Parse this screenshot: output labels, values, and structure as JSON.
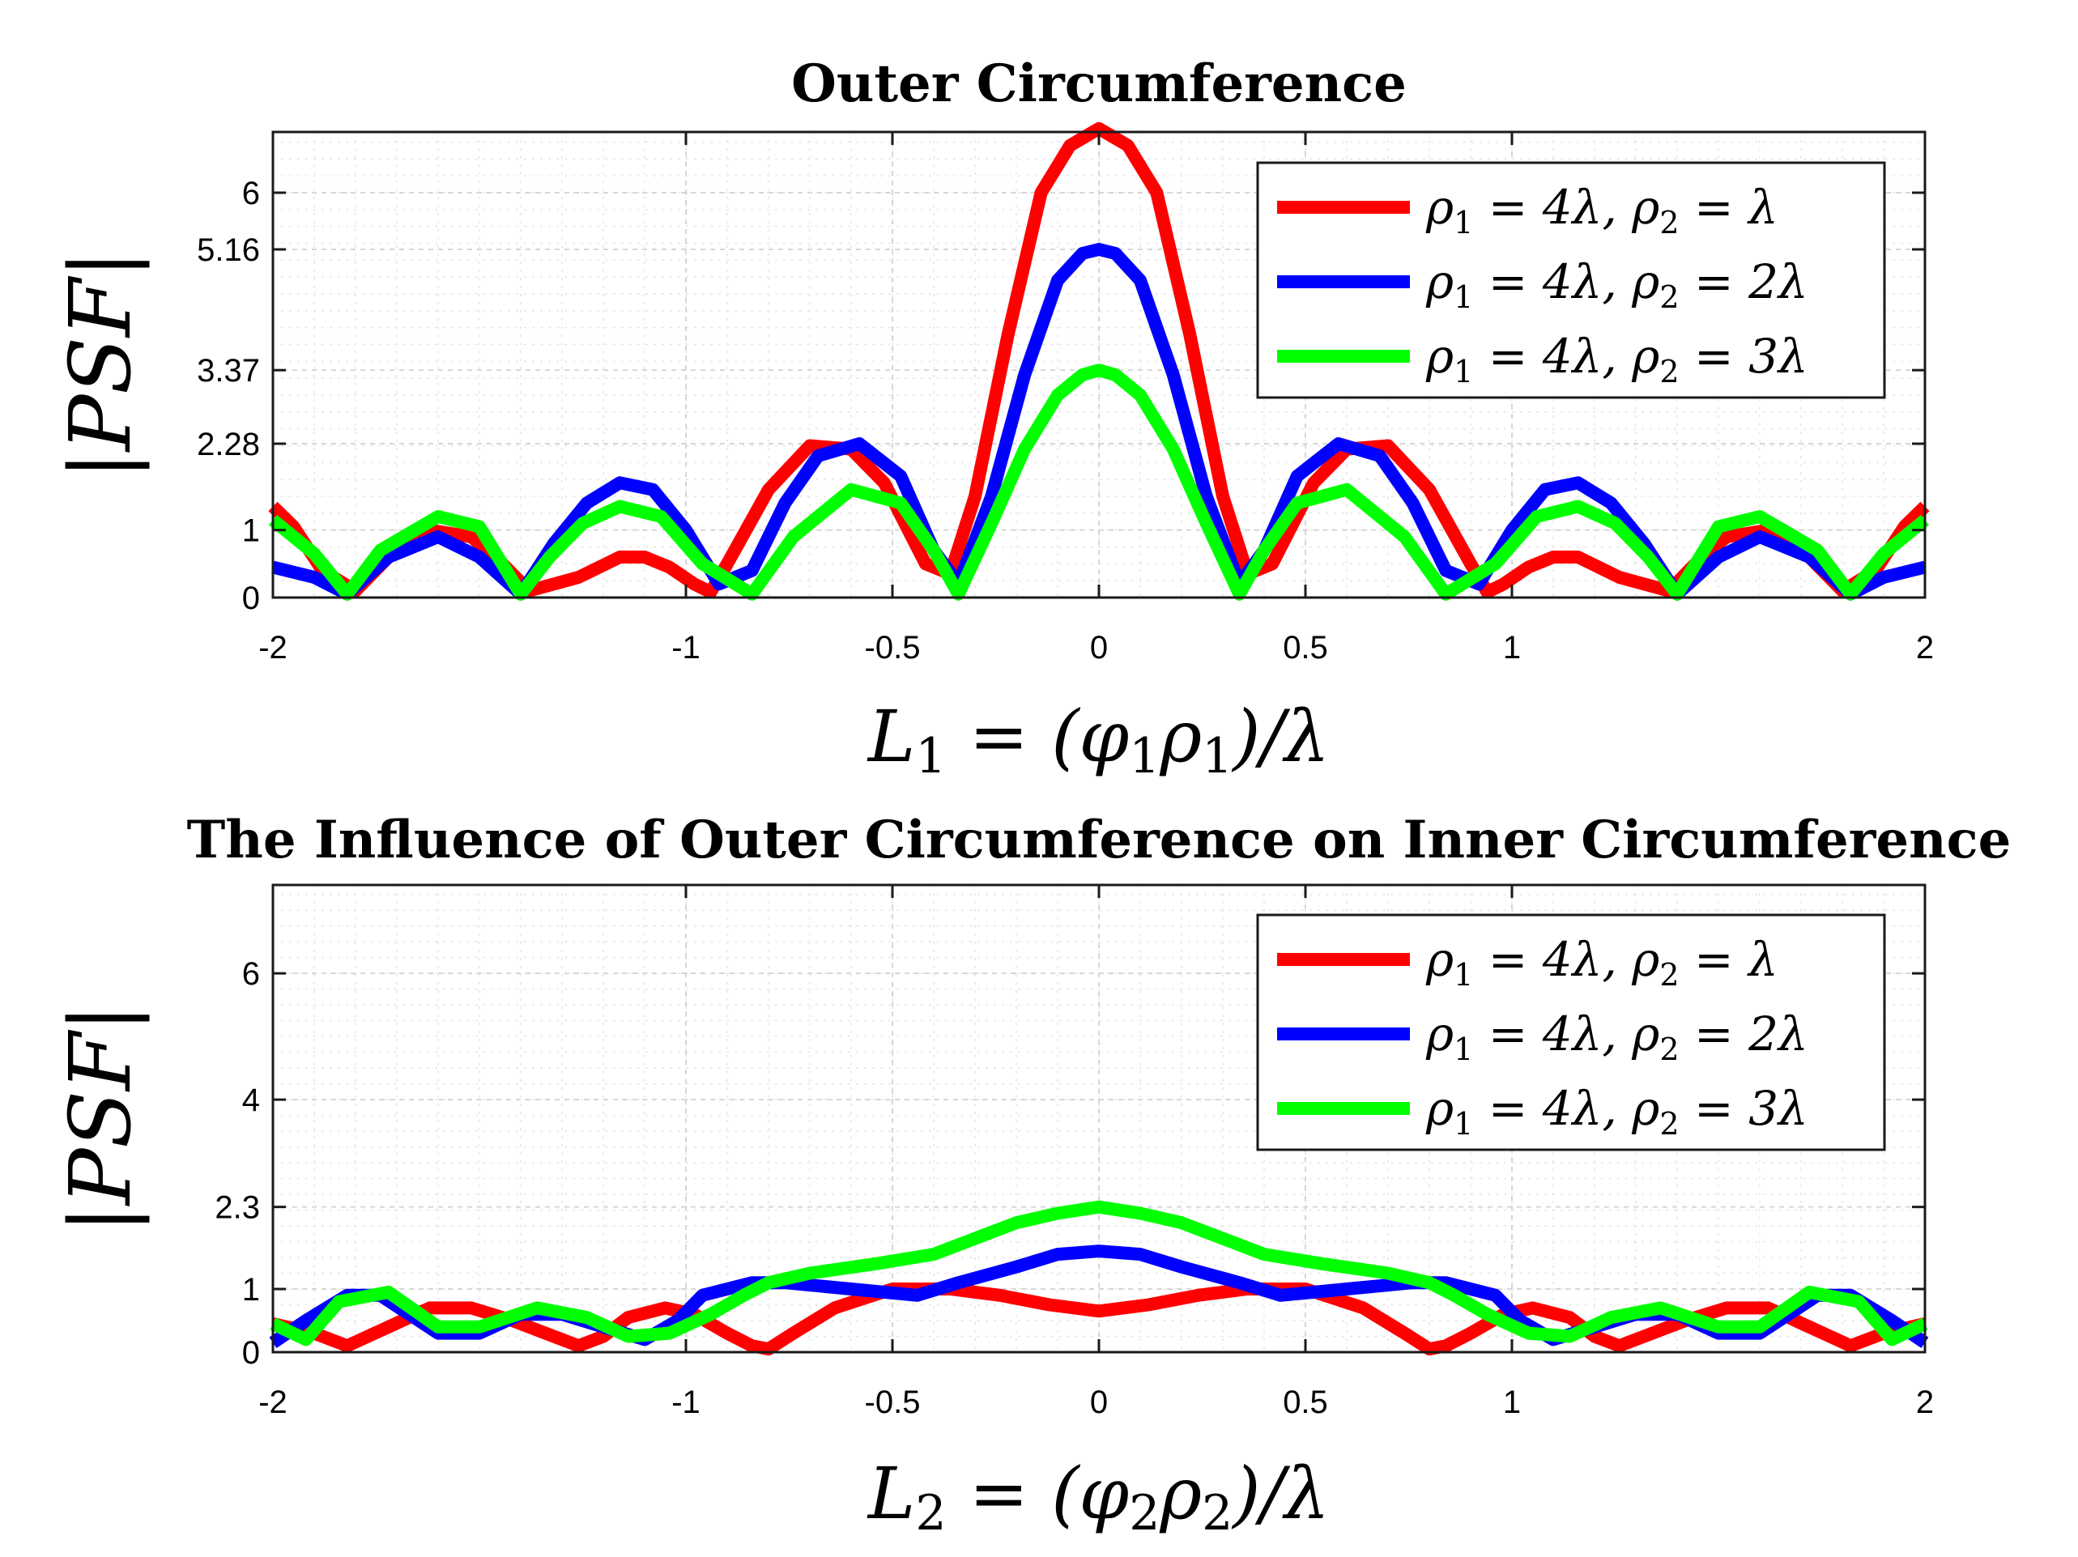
{
  "chart_data": [
    {
      "type": "line",
      "title": "Outer Circumference",
      "ylabel": "|PSF|",
      "xlabel": {
        "main": "L",
        "sub": "1",
        "rest": " = (φ",
        "sub2": "1",
        "mid": "ρ",
        "sub3": "1",
        "end": ")/λ"
      },
      "xlim": [
        -2,
        2
      ],
      "ylim": [
        0,
        6.9
      ],
      "xticks": [
        -2,
        -1,
        -0.5,
        0,
        0.5,
        1,
        2
      ],
      "xtick_labels": [
        "-2",
        "-1",
        "-0.5",
        "0",
        "0.5",
        "1",
        "2"
      ],
      "yticks": [
        0,
        1,
        2.28,
        3.37,
        5.16,
        6
      ],
      "ytick_labels": [
        "0",
        "1",
        "2.28",
        "3.37",
        "5.16",
        "6"
      ],
      "grid": true,
      "legend_location": "top-right",
      "series": [
        {
          "name": "ρ1 = 4λ, ρ2 = λ",
          "legend": {
            "a": "ρ",
            "a_sub": "1",
            "b": " = 4λ, ρ",
            "b_sub": "2",
            "c": " = λ"
          },
          "color": "#ff0000",
          "x": [
            -2.0,
            -1.95,
            -1.88,
            -1.8,
            -1.72,
            -1.62,
            -1.52,
            -1.46,
            -1.38,
            -1.26,
            -1.16,
            -1.1,
            -1.04,
            -0.98,
            -0.94,
            -0.9,
            -0.8,
            -0.7,
            -0.6,
            -0.52,
            -0.42,
            -0.36,
            -0.3,
            -0.22,
            -0.14,
            -0.07,
            0.0,
            0.07,
            0.14,
            0.22,
            0.3,
            0.36,
            0.42,
            0.52,
            0.6,
            0.7,
            0.8,
            0.9,
            0.94,
            0.98,
            1.04,
            1.1,
            1.16,
            1.26,
            1.38,
            1.46,
            1.52,
            1.62,
            1.72,
            1.8,
            1.88,
            1.95,
            2.0
          ],
          "y": [
            1.35,
            1.05,
            0.4,
            0.1,
            0.6,
            1.0,
            0.9,
            0.6,
            0.1,
            0.3,
            0.6,
            0.6,
            0.45,
            0.2,
            0.08,
            0.5,
            1.6,
            2.25,
            2.2,
            1.7,
            0.5,
            0.35,
            1.5,
            3.9,
            6.0,
            6.7,
            6.95,
            6.7,
            6.0,
            3.9,
            1.5,
            0.35,
            0.5,
            1.7,
            2.2,
            2.25,
            1.6,
            0.5,
            0.08,
            0.2,
            0.45,
            0.6,
            0.6,
            0.3,
            0.1,
            0.6,
            0.9,
            1.0,
            0.6,
            0.1,
            0.4,
            1.05,
            1.35
          ]
        },
        {
          "name": "ρ1 = 4λ, ρ2 = 2λ",
          "legend": {
            "a": "ρ",
            "a_sub": "1",
            "b": " = 4λ, ρ",
            "b_sub": "2",
            "c": " = 2λ"
          },
          "color": "#0000ff",
          "x": [
            -2.0,
            -1.9,
            -1.82,
            -1.72,
            -1.6,
            -1.5,
            -1.4,
            -1.32,
            -1.24,
            -1.16,
            -1.08,
            -1.0,
            -0.92,
            -0.84,
            -0.76,
            -0.68,
            -0.58,
            -0.48,
            -0.4,
            -0.34,
            -0.26,
            -0.18,
            -0.1,
            -0.04,
            0.0,
            0.04,
            0.1,
            0.18,
            0.26,
            0.34,
            0.4,
            0.48,
            0.58,
            0.68,
            0.76,
            0.84,
            0.92,
            1.0,
            1.08,
            1.16,
            1.24,
            1.32,
            1.4,
            1.5,
            1.6,
            1.72,
            1.82,
            1.9,
            2.0
          ],
          "y": [
            0.45,
            0.3,
            0.05,
            0.6,
            0.9,
            0.6,
            0.05,
            0.8,
            1.4,
            1.7,
            1.6,
            1.0,
            0.2,
            0.4,
            1.4,
            2.1,
            2.28,
            1.8,
            0.7,
            0.2,
            1.5,
            3.3,
            4.7,
            5.1,
            5.16,
            5.1,
            4.7,
            3.3,
            1.5,
            0.2,
            0.7,
            1.8,
            2.28,
            2.1,
            1.4,
            0.4,
            0.2,
            1.0,
            1.6,
            1.7,
            1.4,
            0.8,
            0.05,
            0.6,
            0.9,
            0.6,
            0.05,
            0.3,
            0.45
          ]
        },
        {
          "name": "ρ1 = 4λ, ρ2 = 3λ",
          "legend": {
            "a": "ρ",
            "a_sub": "1",
            "b": " = 4λ, ρ",
            "b_sub": "2",
            "c": " = 3λ"
          },
          "color": "#00ff00",
          "x": [
            -2.0,
            -1.9,
            -1.82,
            -1.74,
            -1.6,
            -1.5,
            -1.4,
            -1.33,
            -1.25,
            -1.16,
            -1.06,
            -0.96,
            -0.84,
            -0.74,
            -0.6,
            -0.48,
            -0.4,
            -0.34,
            -0.26,
            -0.18,
            -0.1,
            -0.04,
            0.0,
            0.04,
            0.1,
            0.18,
            0.26,
            0.34,
            0.4,
            0.48,
            0.6,
            0.74,
            0.84,
            0.96,
            1.06,
            1.16,
            1.25,
            1.33,
            1.4,
            1.5,
            1.6,
            1.74,
            1.82,
            1.9,
            2.0
          ],
          "y": [
            1.15,
            0.65,
            0.05,
            0.7,
            1.2,
            1.05,
            0.05,
            0.6,
            1.1,
            1.35,
            1.2,
            0.5,
            0.05,
            0.9,
            1.6,
            1.4,
            0.7,
            0.05,
            1.1,
            2.2,
            3.0,
            3.3,
            3.37,
            3.3,
            3.0,
            2.2,
            1.1,
            0.05,
            0.7,
            1.4,
            1.6,
            0.9,
            0.05,
            0.5,
            1.2,
            1.35,
            1.1,
            0.6,
            0.05,
            1.05,
            1.2,
            0.7,
            0.05,
            0.65,
            1.15
          ]
        }
      ]
    },
    {
      "type": "line",
      "title": "The Influence of Outer Circumference on Inner Circumference",
      "ylabel": "|PSF|",
      "xlabel": {
        "main": "L",
        "sub": "2",
        "rest": " = (φ",
        "sub2": "2",
        "mid": "ρ",
        "sub3": "2",
        "end": ")/λ"
      },
      "xlim": [
        -2,
        2
      ],
      "ylim": [
        0,
        7.4
      ],
      "xticks": [
        -2,
        -1,
        -0.5,
        0,
        0.5,
        1,
        2
      ],
      "xtick_labels": [
        "-2",
        "-1",
        "-0.5",
        "0",
        "0.5",
        "1",
        "2"
      ],
      "yticks": [
        0,
        1,
        2.3,
        4,
        6
      ],
      "ytick_labels": [
        "0",
        "1",
        "2.3",
        "4",
        "6"
      ],
      "grid": true,
      "legend_location": "top-right",
      "series": [
        {
          "name": "ρ1 = 4λ, ρ2 = λ",
          "legend": {
            "a": "ρ",
            "a_sub": "1",
            "b": " = 4λ, ρ",
            "b_sub": "2",
            "c": " = λ"
          },
          "color": "#ff0000",
          "x": [
            -2.0,
            -1.9,
            -1.82,
            -1.72,
            -1.62,
            -1.52,
            -1.42,
            -1.34,
            -1.26,
            -1.2,
            -1.14,
            -1.05,
            -0.98,
            -0.9,
            -0.84,
            -0.8,
            -0.74,
            -0.64,
            -0.5,
            -0.36,
            -0.24,
            -0.12,
            0.0,
            0.12,
            0.24,
            0.36,
            0.5,
            0.64,
            0.74,
            0.8,
            0.84,
            0.9,
            0.98,
            1.05,
            1.14,
            1.2,
            1.26,
            1.34,
            1.42,
            1.52,
            1.62,
            1.72,
            1.82,
            1.9,
            2.0
          ],
          "y": [
            0.45,
            0.3,
            0.1,
            0.4,
            0.7,
            0.7,
            0.5,
            0.3,
            0.1,
            0.25,
            0.55,
            0.7,
            0.6,
            0.3,
            0.1,
            0.05,
            0.3,
            0.7,
            1.0,
            1.0,
            0.9,
            0.75,
            0.65,
            0.75,
            0.9,
            1.0,
            1.0,
            0.7,
            0.3,
            0.05,
            0.1,
            0.3,
            0.6,
            0.7,
            0.55,
            0.25,
            0.1,
            0.3,
            0.5,
            0.7,
            0.7,
            0.4,
            0.1,
            0.3,
            0.45
          ]
        },
        {
          "name": "ρ1 = 4λ, ρ2 = 2λ",
          "legend": {
            "a": "ρ",
            "a_sub": "1",
            "b": " = 4λ, ρ",
            "b_sub": "2",
            "c": " = 2λ"
          },
          "color": "#0000ff",
          "x": [
            -2.0,
            -1.92,
            -1.82,
            -1.74,
            -1.6,
            -1.5,
            -1.4,
            -1.3,
            -1.2,
            -1.1,
            -1.02,
            -0.96,
            -0.84,
            -0.76,
            -0.6,
            -0.44,
            -0.34,
            -0.2,
            -0.1,
            0.0,
            0.1,
            0.2,
            0.34,
            0.44,
            0.6,
            0.76,
            0.84,
            0.96,
            1.02,
            1.1,
            1.2,
            1.3,
            1.4,
            1.5,
            1.6,
            1.74,
            1.82,
            1.92,
            2.0
          ],
          "y": [
            0.15,
            0.5,
            0.9,
            0.9,
            0.3,
            0.3,
            0.6,
            0.6,
            0.4,
            0.2,
            0.5,
            0.9,
            1.1,
            1.1,
            1.0,
            0.9,
            1.1,
            1.35,
            1.55,
            1.6,
            1.55,
            1.35,
            1.1,
            0.9,
            1.0,
            1.1,
            1.1,
            0.9,
            0.5,
            0.2,
            0.4,
            0.6,
            0.6,
            0.3,
            0.3,
            0.9,
            0.9,
            0.5,
            0.15
          ]
        },
        {
          "name": "ρ1 = 4λ, ρ2 = 3λ",
          "legend": {
            "a": "ρ",
            "a_sub": "1",
            "b": " = 4λ, ρ",
            "b_sub": "2",
            "c": " = 3λ"
          },
          "color": "#00ff00",
          "x": [
            -2.0,
            -1.92,
            -1.84,
            -1.72,
            -1.6,
            -1.5,
            -1.36,
            -1.24,
            -1.14,
            -1.04,
            -0.94,
            -0.86,
            -0.8,
            -0.7,
            -0.54,
            -0.4,
            -0.3,
            -0.2,
            -0.1,
            0.0,
            0.1,
            0.2,
            0.3,
            0.4,
            0.54,
            0.7,
            0.8,
            0.86,
            0.94,
            1.04,
            1.14,
            1.24,
            1.36,
            1.5,
            1.6,
            1.72,
            1.84,
            1.92,
            2.0
          ],
          "y": [
            0.45,
            0.2,
            0.8,
            0.95,
            0.4,
            0.4,
            0.7,
            0.55,
            0.25,
            0.3,
            0.6,
            0.9,
            1.1,
            1.25,
            1.4,
            1.55,
            1.8,
            2.05,
            2.2,
            2.3,
            2.2,
            2.05,
            1.8,
            1.55,
            1.4,
            1.25,
            1.1,
            0.9,
            0.6,
            0.3,
            0.25,
            0.55,
            0.7,
            0.4,
            0.4,
            0.95,
            0.8,
            0.2,
            0.45
          ]
        }
      ]
    }
  ]
}
